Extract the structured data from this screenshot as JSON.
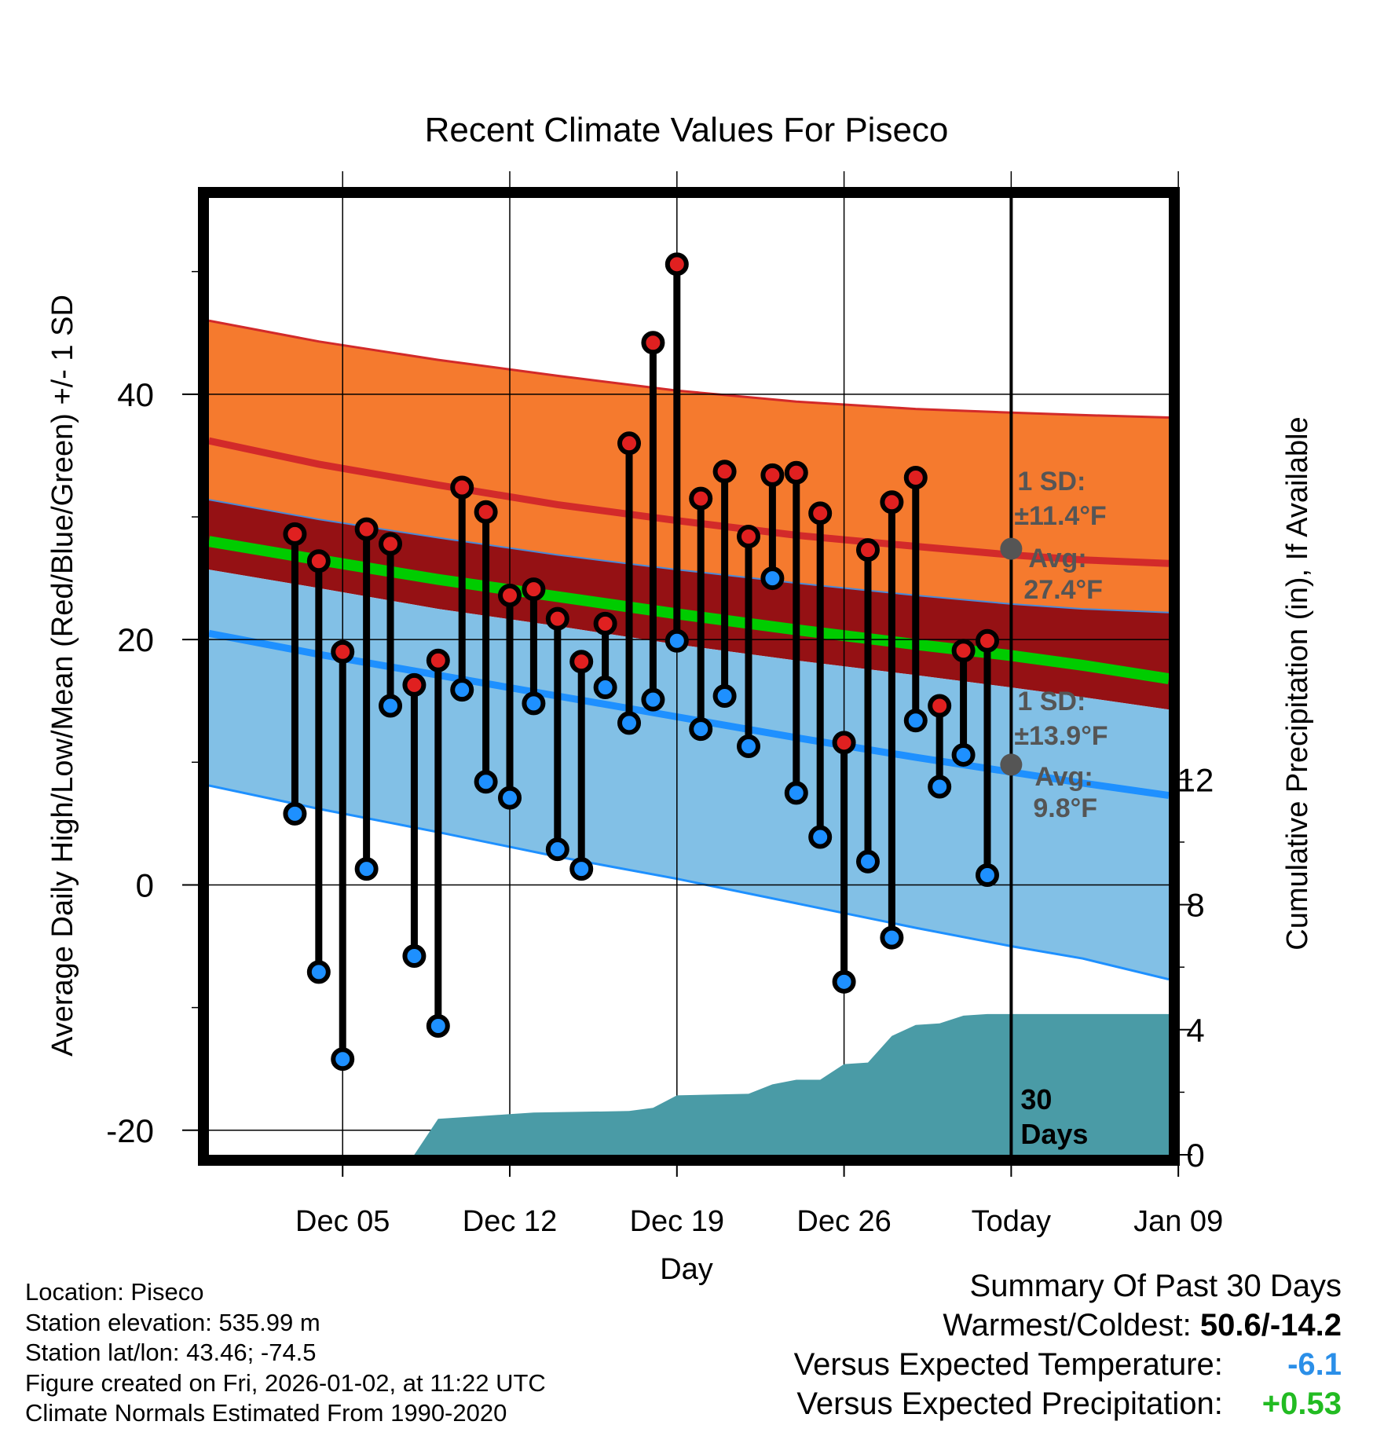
{
  "chart_data": {
    "type": "line",
    "title": "Recent Climate Values For Piseco",
    "xlabel": "Day",
    "ylabel": "Average Daily High/Low/Mean (Red/Blue/Green) +/- 1 SD",
    "y2label": "Cumulative Precipitation (in), If Available",
    "ylim": [
      -22,
      56
    ],
    "y2lim": [
      0,
      30.6
    ],
    "xlim": [
      -2.6,
      37.6
    ],
    "x_tick_positions": [
      3,
      10,
      17,
      24,
      31,
      38
    ],
    "x_tick_labels": [
      "Dec 05",
      "Dec 12",
      "Dec 19",
      "Dec 26",
      "Today",
      "Jan 09"
    ],
    "y_ticks": [
      -20,
      0,
      20,
      40
    ],
    "y_tick_labels": [
      "-20",
      "0",
      "20",
      "40"
    ],
    "y2_ticks": [
      0,
      4,
      8,
      12
    ],
    "y2_tick_labels": [
      "0",
      "4",
      "8",
      "12"
    ],
    "today_x": 31,
    "today_label": [
      "30",
      "Days"
    ],
    "normals": {
      "x": [
        -2.6,
        2,
        7,
        12,
        17,
        22,
        27,
        31,
        34,
        37.6
      ],
      "high_mean": [
        36.2,
        34.3,
        32.6,
        31.0,
        29.7,
        28.5,
        27.6,
        26.9,
        26.5,
        26.2
      ],
      "high_upper": [
        46.0,
        44.3,
        42.8,
        41.5,
        40.3,
        39.4,
        38.8,
        38.5,
        38.3,
        38.1
      ],
      "high_lower": [
        31.4,
        29.8,
        28.3,
        26.9,
        25.7,
        24.6,
        23.6,
        22.9,
        22.5,
        22.2
      ],
      "mean": [
        28.0,
        26.5,
        24.9,
        23.5,
        22.1,
        20.8,
        19.6,
        18.7,
        17.9,
        16.8
      ],
      "mean_lower": [
        25.7,
        24.2,
        22.5,
        21.1,
        19.6,
        18.3,
        17.1,
        16.1,
        15.3,
        14.3
      ],
      "low_mean": [
        20.5,
        18.8,
        17.1,
        15.4,
        13.7,
        12.0,
        10.4,
        9.2,
        8.3,
        7.3
      ],
      "low_lower": [
        8.1,
        6.2,
        4.3,
        2.3,
        0.5,
        -1.5,
        -3.5,
        -5.0,
        -6.0,
        -7.7
      ]
    },
    "series": [
      {
        "name": "High",
        "color": "#e02020",
        "x": [
          1,
          2,
          3,
          4,
          5,
          6,
          7,
          8,
          9,
          10,
          11,
          12,
          13,
          14,
          15,
          16,
          17,
          18,
          19,
          20,
          21,
          22,
          23,
          24,
          25,
          26,
          27,
          28,
          29,
          30
        ],
        "values": [
          28.6,
          26.4,
          19.0,
          29.0,
          27.8,
          16.3,
          18.3,
          32.4,
          30.4,
          23.6,
          24.1,
          21.7,
          18.2,
          21.3,
          36.0,
          44.2,
          50.6,
          31.5,
          33.7,
          28.4,
          33.4,
          33.6,
          30.3,
          11.6,
          27.3,
          31.2,
          33.2,
          14.6,
          19.1,
          19.9
        ]
      },
      {
        "name": "Low",
        "color": "#1e90ff",
        "x": [
          1,
          2,
          3,
          4,
          5,
          6,
          7,
          8,
          9,
          10,
          11,
          12,
          13,
          14,
          15,
          16,
          17,
          18,
          19,
          20,
          21,
          22,
          23,
          24,
          25,
          26,
          27,
          28,
          29,
          30
        ],
        "values": [
          5.8,
          -7.1,
          -14.2,
          1.3,
          14.6,
          -5.8,
          -11.5,
          15.9,
          8.4,
          7.1,
          14.8,
          2.9,
          1.3,
          16.1,
          13.2,
          15.1,
          19.9,
          12.7,
          15.4,
          11.3,
          25.0,
          7.5,
          3.9,
          -7.9,
          1.9,
          -4.3,
          13.4,
          8.0,
          10.6,
          0.8
        ]
      }
    ],
    "precip": {
      "name": "Cumulative Precipitation",
      "color": "#4a9ba6",
      "x": [
        6,
        7,
        8,
        10,
        11,
        15,
        16,
        17,
        20,
        21,
        22,
        23,
        24,
        25,
        26,
        27,
        28,
        29,
        30,
        31,
        37.6
      ],
      "values": [
        0.0,
        1.15,
        1.2,
        1.3,
        1.35,
        1.4,
        1.5,
        1.9,
        1.95,
        2.25,
        2.4,
        2.4,
        2.9,
        2.95,
        3.8,
        4.15,
        4.2,
        4.45,
        4.5,
        4.5,
        4.5
      ]
    },
    "annotations": {
      "high": {
        "sd_label": "1 SD:",
        "sd_value": "±11.4°F",
        "avg_label": "Avg:",
        "avg_value": "27.4°F",
        "avg": 27.4
      },
      "low": {
        "sd_label": "1 SD:",
        "sd_value": "±13.9°F",
        "avg_label": "Avg:",
        "avg_value": "9.8°F",
        "avg": 9.8
      }
    }
  },
  "location": {
    "line1": "Location: Piseco",
    "line2": "Station elevation: 535.99 m",
    "line3": "Station lat/lon: 43.46; -74.5",
    "line4": "Figure created on Fri, 2026-01-02, at 11:22 UTC",
    "line5": "Climate Normals Estimated From 1990-2020"
  },
  "summary": {
    "title": "Summary Of Past 30 Days",
    "warm_label": "Warmest/Coldest:",
    "warm_value": "50.6/-14.2",
    "temp_label": "Versus Expected Temperature:",
    "temp_value": "-6.1",
    "temp_color": "#2b8fe8",
    "precip_label": "Versus Expected Precipitation:",
    "precip_value": "+0.53",
    "precip_color": "#22bb22"
  }
}
